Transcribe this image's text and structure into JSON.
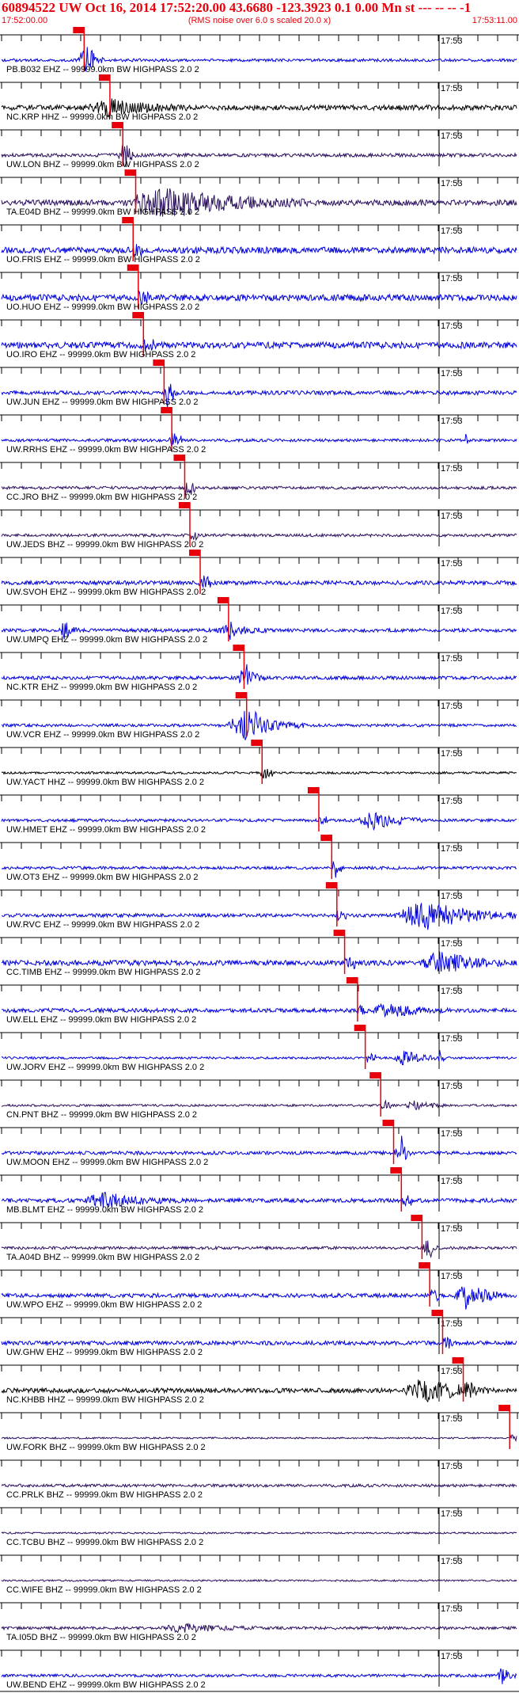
{
  "header": {
    "title": "60894522 UW Oct 16, 2014 17:52:20.00   43.6680 -123.3923  0.1 0.00 Mn st --- -- --   -1",
    "start_time": "17:52:00.00",
    "noise_note": "(RMS noise over 6.0 s scaled 20.0 x)",
    "end_time": "17:53:11.00"
  },
  "chart_data": {
    "type": "line",
    "x_start": "17:52:00.00",
    "x_end": "17:53:11.00",
    "marker_time_label": "17:53",
    "pick_tag": "",
    "traces": [
      {
        "label": "PB.B032 EHZ -- 99999.0km BW  HIGHPASS  2.0  2",
        "pick": 0.16,
        "color": "#0000dd",
        "amp": 0.1,
        "seed": 1,
        "bursts": [
          [
            0.16,
            0.04,
            0.9
          ]
        ]
      },
      {
        "label": "NC.KRP HHZ -- 99999.0km BW  HIGHPASS  2.0  2",
        "pick": 0.21,
        "color": "#000000",
        "amp": 0.18,
        "seed": 2,
        "bursts": [
          [
            0.21,
            0.15,
            0.5
          ]
        ]
      },
      {
        "label": "UW.LON BHZ -- 99999.0km BW  HIGHPASS  2.0  2",
        "pick": 0.235,
        "color": "#2a0f5e",
        "amp": 0.12,
        "seed": 3,
        "bursts": [
          [
            0.235,
            0.03,
            0.8
          ]
        ]
      },
      {
        "label": "TA.E04D BHZ -- 99999.0km BW  HIGHPASS  2.0  2",
        "pick": 0.26,
        "color": "#2a0f5e",
        "amp": 0.2,
        "seed": 4,
        "bursts": [
          [
            0.32,
            0.28,
            1.0
          ]
        ]
      },
      {
        "label": "UO.FRIS EHZ -- 99999.0km BW  HIGHPASS  2.0  2",
        "pick": 0.255,
        "color": "#0000dd",
        "amp": 0.22,
        "seed": 5,
        "bursts": []
      },
      {
        "label": "UO.HUO EHZ -- 99999.0km BW  HIGHPASS  2.0  2",
        "pick": 0.265,
        "color": "#0000dd",
        "amp": 0.22,
        "seed": 6,
        "bursts": []
      },
      {
        "label": "UO.IRO EHZ -- 99999.0km BW  HIGHPASS  2.0  2",
        "pick": 0.275,
        "color": "#0000dd",
        "amp": 0.22,
        "seed": 7,
        "bursts": []
      },
      {
        "label": "UW.JUN EHZ -- 99999.0km BW  HIGHPASS  2.0  2",
        "pick": 0.315,
        "color": "#0000dd",
        "amp": 0.14,
        "seed": 8,
        "bursts": [
          [
            0.32,
            0.02,
            0.9
          ]
        ]
      },
      {
        "label": "UW.RRHS EHZ -- 99999.0km BW  HIGHPASS  2.0  2",
        "pick": 0.33,
        "color": "#0000dd",
        "amp": 0.1,
        "seed": 9,
        "bursts": [
          [
            0.33,
            0.02,
            0.4
          ],
          [
            0.9,
            0.01,
            0.5
          ]
        ]
      },
      {
        "label": "CC.JRO BHZ -- 99999.0km BW  HIGHPASS  2.0  2",
        "pick": 0.355,
        "color": "#2a0f5e",
        "amp": 0.1,
        "seed": 10,
        "bursts": [
          [
            0.36,
            0.02,
            0.5
          ]
        ]
      },
      {
        "label": "UW.JEDS BHZ -- 99999.0km BW  HIGHPASS  2.0  2",
        "pick": 0.365,
        "color": "#2a0f5e",
        "amp": 0.1,
        "seed": 11,
        "bursts": []
      },
      {
        "label": "UW.SVOH EHZ -- 99999.0km BW  HIGHPASS  2.0  2",
        "pick": 0.385,
        "color": "#0000dd",
        "amp": 0.14,
        "seed": 12,
        "bursts": [
          [
            0.385,
            0.02,
            0.4
          ]
        ]
      },
      {
        "label": "UW.UMPQ EHZ -- 99999.0km BW  HIGHPASS  2.0  2",
        "pick": 0.44,
        "color": "#0000dd",
        "amp": 0.12,
        "seed": 13,
        "bursts": [
          [
            0.12,
            0.03,
            0.7
          ],
          [
            0.44,
            0.08,
            0.4
          ]
        ]
      },
      {
        "label": "NC.KTR EHZ -- 99999.0km BW  HIGHPASS  2.0  2",
        "pick": 0.47,
        "color": "#0000dd",
        "amp": 0.12,
        "seed": 14,
        "bursts": [
          [
            0.47,
            0.04,
            0.9
          ]
        ]
      },
      {
        "label": "UW.VCR EHZ -- 99999.0km BW  HIGHPASS  2.0  2",
        "pick": 0.475,
        "color": "#0000dd",
        "amp": 0.1,
        "seed": 15,
        "bursts": [
          [
            0.47,
            0.12,
            1.0
          ]
        ]
      },
      {
        "label": "UW.YACT HHZ -- 99999.0km BW  HIGHPASS  2.0  2",
        "pick": 0.505,
        "color": "#000000",
        "amp": 0.08,
        "seed": 16,
        "bursts": [
          [
            0.505,
            0.01,
            0.6
          ]
        ]
      },
      {
        "label": "UW.HMET EHZ -- 99999.0km BW  HIGHPASS  2.0  2",
        "pick": 0.615,
        "color": "#0000dd",
        "amp": 0.1,
        "seed": 17,
        "bursts": [
          [
            0.72,
            0.1,
            0.7
          ]
        ]
      },
      {
        "label": "UW.OT3 EHZ -- 99999.0km BW  HIGHPASS  2.0  2",
        "pick": 0.64,
        "color": "#0000dd",
        "amp": 0.1,
        "seed": 18,
        "bursts": [
          [
            0.645,
            0.01,
            0.8
          ]
        ]
      },
      {
        "label": "UW.RVC EHZ -- 99999.0km BW  HIGHPASS  2.0  2",
        "pick": 0.65,
        "color": "#0000dd",
        "amp": 0.12,
        "seed": 19,
        "bursts": [
          [
            0.82,
            0.2,
            1.0
          ]
        ]
      },
      {
        "label": "CC.TIMB EHZ -- 99999.0km BW  HIGHPASS  2.0  2",
        "pick": 0.665,
        "color": "#0000dd",
        "amp": 0.18,
        "seed": 20,
        "bursts": [
          [
            0.85,
            0.12,
            0.8
          ]
        ]
      },
      {
        "label": "UW.ELL EHZ -- 99999.0km BW  HIGHPASS  2.0  2",
        "pick": 0.69,
        "color": "#0000dd",
        "amp": 0.14,
        "seed": 21,
        "bursts": [
          [
            0.75,
            0.12,
            0.5
          ]
        ]
      },
      {
        "label": "UW.JORV EHZ -- 99999.0km BW  HIGHPASS  2.0  2",
        "pick": 0.705,
        "color": "#0000dd",
        "amp": 0.08,
        "seed": 22,
        "bursts": [
          [
            0.78,
            0.08,
            0.5
          ],
          [
            0.85,
            0.01,
            0.6
          ]
        ]
      },
      {
        "label": "CN.PNT BHZ -- 99999.0km BW  HIGHPASS  2.0  2",
        "pick": 0.735,
        "color": "#2a0f5e",
        "amp": 0.08,
        "seed": 23,
        "bursts": [
          [
            0.8,
            0.06,
            0.4
          ]
        ]
      },
      {
        "label": "UW.MOON EHZ -- 99999.0km BW  HIGHPASS  2.0  2",
        "pick": 0.76,
        "color": "#0000dd",
        "amp": 0.12,
        "seed": 24,
        "bursts": [
          [
            0.775,
            0.02,
            0.9
          ]
        ]
      },
      {
        "label": "MB.BLMT EHZ -- 99999.0km BW  HIGHPASS  2.0  2",
        "pick": 0.775,
        "color": "#0000dd",
        "amp": 0.14,
        "seed": 25,
        "bursts": [
          [
            0.2,
            0.15,
            0.5
          ]
        ]
      },
      {
        "label": "TA.A04D BHZ -- 99999.0km BW  HIGHPASS  2.0  2",
        "pick": 0.815,
        "color": "#2a0f5e",
        "amp": 0.1,
        "seed": 26,
        "bursts": [
          [
            0.825,
            0.02,
            0.7
          ]
        ]
      },
      {
        "label": "UW.WPO EHZ -- 99999.0km BW  HIGHPASS  2.0  2",
        "pick": 0.83,
        "color": "#0000dd",
        "amp": 0.14,
        "seed": 27,
        "bursts": [
          [
            0.9,
            0.08,
            0.9
          ]
        ]
      },
      {
        "label": "UW.GHW EHZ -- 99999.0km BW  HIGHPASS  2.0  2",
        "pick": 0.855,
        "color": "#0000dd",
        "amp": 0.14,
        "seed": 28,
        "bursts": []
      },
      {
        "label": "NC.KHBB HHZ -- 99999.0km BW  HIGHPASS  2.0  2",
        "pick": 0.895,
        "color": "#000000",
        "amp": 0.16,
        "seed": 29,
        "bursts": [
          [
            0.82,
            0.14,
            0.9
          ]
        ]
      },
      {
        "label": "UW.FORK BHZ -- 99999.0km BW  HIGHPASS  2.0  2",
        "pick": 0.985,
        "color": "#2a0f5e",
        "amp": 0.06,
        "seed": 30,
        "bursts": []
      },
      {
        "label": "CC.PRLK BHZ -- 99999.0km BW  HIGHPASS  2.0  2",
        "pick": null,
        "color": "#2a0f5e",
        "amp": 0.1,
        "seed": 31,
        "bursts": []
      },
      {
        "label": "CC.TCBU BHZ -- 99999.0km BW  HIGHPASS  2.0  2",
        "pick": null,
        "color": "#2a0f5e",
        "amp": 0.06,
        "seed": 32,
        "bursts": []
      },
      {
        "label": "CC.WIFE BHZ -- 99999.0km BW  HIGHPASS  2.0  2",
        "pick": null,
        "color": "#2a0f5e",
        "amp": 0.06,
        "seed": 33,
        "bursts": []
      },
      {
        "label": "TA.I05D BHZ -- 99999.0km BW  HIGHPASS  2.0  2",
        "pick": null,
        "color": "#2a0f5e",
        "amp": 0.1,
        "seed": 34,
        "bursts": [
          [
            0.35,
            0.15,
            0.3
          ]
        ]
      },
      {
        "label": "UW.BEND EHZ -- 99999.0km BW  HIGHPASS  2.0  2",
        "pick": null,
        "color": "#0000dd",
        "amp": 0.1,
        "seed": 35,
        "bursts": [
          [
            0.97,
            0.03,
            0.6
          ]
        ]
      }
    ]
  }
}
